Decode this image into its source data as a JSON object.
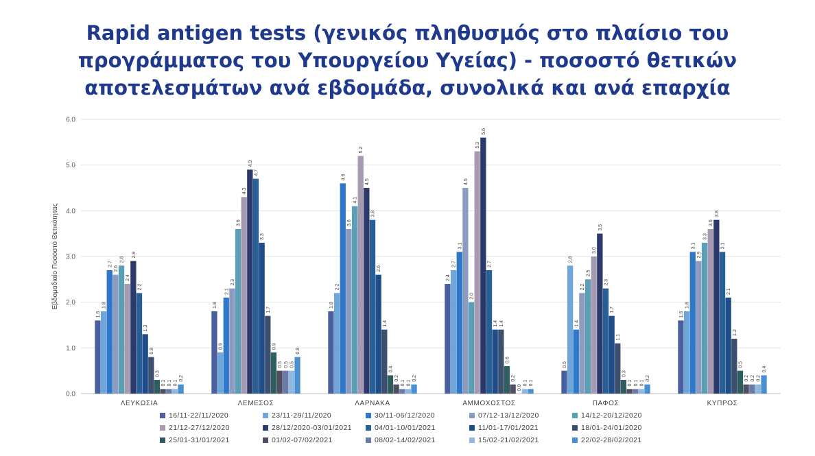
{
  "title": {
    "line1": "Rapid antigen tests (γενικός πληθυσμός στο πλαίσιο του",
    "line2": "προγράμματος του Υπουργείου Υγείας) - ποσοστό θετικών",
    "line3": "αποτελεσμάτων ανά εβδομάδα, συνολικά και ανά επαρχία",
    "color": "#1f3a8c"
  },
  "chart_data": {
    "type": "bar",
    "ylabel": "Εβδομαδιαίο Ποσοστό Θετικότητας",
    "ylim": [
      0,
      6
    ],
    "yticks": [
      "0.0",
      "1.0",
      "2.0",
      "3.0",
      "4.0",
      "5.0",
      "6.0"
    ],
    "grid": true,
    "legend_position": "bottom",
    "categories": [
      "ΛΕΥΚΩΣΙΑ",
      "ΛΕΜΕΣΟΣ",
      "ΛΑΡΝΑΚΑ",
      "ΑΜΜΟΧΩΣΤΟΣ",
      "ΠΑΦΟΣ",
      "ΚΥΠΡΟΣ"
    ],
    "series": [
      {
        "name": "16/11-22/11/2020",
        "color": "#4a5f9e",
        "values": [
          1.6,
          1.8,
          1.8,
          2.4,
          0.5,
          1.6
        ]
      },
      {
        "name": "23/11-29/11/2020",
        "color": "#6ea6da",
        "values": [
          1.8,
          0.9,
          2.2,
          2.7,
          2.8,
          1.8
        ]
      },
      {
        "name": "30/11-06/12/2020",
        "color": "#2f77c8",
        "values": [
          2.7,
          2.1,
          4.6,
          3.1,
          1.4,
          3.1
        ]
      },
      {
        "name": "07/12-13/12/2020",
        "color": "#8c9cc0",
        "values": [
          2.6,
          2.3,
          3.6,
          4.5,
          2.2,
          2.9
        ]
      },
      {
        "name": "14/12-20/12/2020",
        "color": "#5a9fb5",
        "values": [
          2.8,
          3.6,
          4.1,
          2.0,
          2.5,
          3.3
        ]
      },
      {
        "name": "21/12-27/12/2020",
        "color": "#a69ab2",
        "values": [
          2.4,
          4.3,
          5.2,
          5.3,
          3.0,
          3.6
        ]
      },
      {
        "name": "28/12/2020-03/01/2021",
        "color": "#2b3a6b",
        "values": [
          2.9,
          4.9,
          4.5,
          5.6,
          3.5,
          3.8
        ]
      },
      {
        "name": "04/01-10/01/2021",
        "color": "#275f96",
        "values": [
          2.2,
          4.7,
          3.8,
          2.7,
          2.3,
          3.1
        ]
      },
      {
        "name": "11/01-17/01/2021",
        "color": "#1f4d87",
        "values": [
          1.3,
          3.3,
          2.6,
          1.4,
          1.7,
          2.1
        ]
      },
      {
        "name": "18/01-24/01/2020",
        "color": "#3d4f6f",
        "values": [
          0.8,
          1.7,
          1.4,
          1.4,
          1.1,
          1.2
        ]
      },
      {
        "name": "25/01-31/01/2021",
        "color": "#2e5e5e",
        "values": [
          0.3,
          0.9,
          0.4,
          0.6,
          0.3,
          0.5
        ]
      },
      {
        "name": "01/02-07/02/2021",
        "color": "#4f4f5f",
        "values": [
          0.1,
          0.5,
          0.2,
          0.2,
          0.1,
          0.2
        ]
      },
      {
        "name": "08/02-14/02/2021",
        "color": "#6b7aa8",
        "values": [
          0.1,
          0.5,
          0.1,
          0.0,
          0.1,
          0.2
        ]
      },
      {
        "name": "15/02-21/02/2021",
        "color": "#8fb8e0",
        "values": [
          0.1,
          0.5,
          0.1,
          0.1,
          0.1,
          0.2
        ]
      },
      {
        "name": "22/02-28/02/2021",
        "color": "#4a90d0",
        "values": [
          0.2,
          0.8,
          0.2,
          0.1,
          0.2,
          0.4
        ]
      }
    ]
  }
}
